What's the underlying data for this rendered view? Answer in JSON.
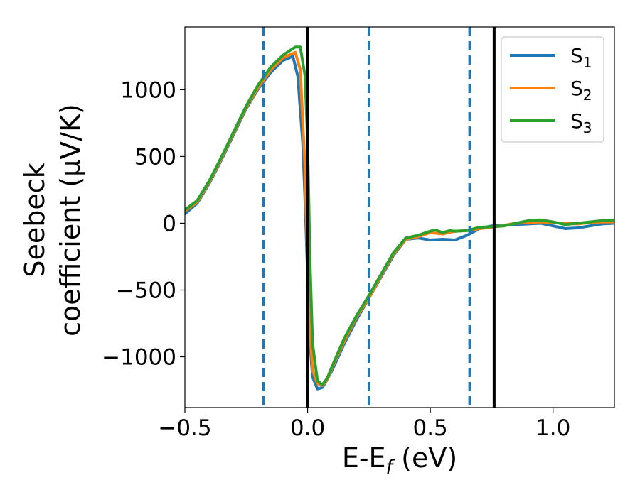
{
  "chart_data": {
    "type": "line",
    "xlabel": {
      "main": "E-E",
      "sub": "f",
      "unit": " (eV)"
    },
    "ylabel": {
      "line1": "Seebeck",
      "line2": "coefficient  (μV/K)"
    },
    "xlim": [
      -0.5,
      1.25
    ],
    "ylim": [
      -1380,
      1470
    ],
    "xticks": [
      -0.5,
      0.0,
      0.5,
      1.0
    ],
    "xtick_labels": [
      "−0.5",
      "0.0",
      "0.5",
      "1.0"
    ],
    "yticks": [
      -1000,
      -500,
      0,
      500,
      1000
    ],
    "ytick_labels": [
      "−1000",
      "−500",
      "0",
      "500",
      "1000"
    ],
    "legend_position": "upper right",
    "vertical_lines": [
      {
        "x": -0.18,
        "style": "dashed",
        "color": "#1f77b4"
      },
      {
        "x": 0.0,
        "style": "solid",
        "color": "#000000"
      },
      {
        "x": 0.25,
        "style": "dashed",
        "color": "#1f77b4"
      },
      {
        "x": 0.66,
        "style": "dashed",
        "color": "#1f77b4"
      },
      {
        "x": 0.76,
        "style": "solid",
        "color": "#000000"
      }
    ],
    "series": [
      {
        "name": "S",
        "sub": "1",
        "color": "#1f77b4",
        "x": [
          -0.5,
          -0.45,
          -0.4,
          -0.35,
          -0.3,
          -0.25,
          -0.2,
          -0.15,
          -0.1,
          -0.06,
          -0.04,
          -0.02,
          -0.01,
          0.0,
          0.01,
          0.02,
          0.04,
          0.06,
          0.08,
          0.1,
          0.15,
          0.2,
          0.25,
          0.3,
          0.35,
          0.4,
          0.45,
          0.5,
          0.55,
          0.6,
          0.65,
          0.7,
          0.75,
          0.8,
          0.85,
          0.9,
          0.95,
          1.0,
          1.05,
          1.1,
          1.15,
          1.2,
          1.25
        ],
        "y": [
          70,
          150,
          300,
          480,
          670,
          860,
          1010,
          1130,
          1220,
          1250,
          1100,
          600,
          150,
          -400,
          -900,
          -1150,
          -1240,
          -1230,
          -1170,
          -1100,
          -900,
          -720,
          -560,
          -400,
          -240,
          -120,
          -110,
          -125,
          -120,
          -125,
          -90,
          -40,
          -20,
          -15,
          -10,
          -5,
          0,
          -20,
          -40,
          -35,
          -20,
          -5,
          0
        ]
      },
      {
        "name": "S",
        "sub": "2",
        "color": "#ff7f0e",
        "x": [
          -0.5,
          -0.45,
          -0.4,
          -0.35,
          -0.3,
          -0.25,
          -0.2,
          -0.15,
          -0.1,
          -0.05,
          -0.03,
          -0.01,
          0.0,
          0.01,
          0.02,
          0.04,
          0.06,
          0.08,
          0.1,
          0.15,
          0.2,
          0.25,
          0.3,
          0.35,
          0.4,
          0.45,
          0.5,
          0.55,
          0.6,
          0.65,
          0.7,
          0.75,
          0.8,
          0.85,
          0.9,
          0.95,
          1.0,
          1.05,
          1.1,
          1.15,
          1.2,
          1.25
        ],
        "y": [
          90,
          160,
          310,
          490,
          680,
          870,
          1020,
          1150,
          1240,
          1280,
          1150,
          400,
          -300,
          -800,
          -1100,
          -1200,
          -1215,
          -1170,
          -1080,
          -880,
          -700,
          -560,
          -390,
          -230,
          -120,
          -100,
          -70,
          -80,
          -60,
          -55,
          -40,
          -30,
          -15,
          0,
          5,
          10,
          5,
          0,
          -5,
          5,
          10,
          10
        ]
      },
      {
        "name": "S",
        "sub": "3",
        "color": "#2ca02c",
        "x": [
          -0.5,
          -0.45,
          -0.4,
          -0.35,
          -0.3,
          -0.25,
          -0.2,
          -0.15,
          -0.1,
          -0.05,
          -0.03,
          -0.01,
          0.0,
          0.01,
          0.02,
          0.04,
          0.06,
          0.08,
          0.1,
          0.15,
          0.2,
          0.25,
          0.3,
          0.35,
          0.4,
          0.45,
          0.5,
          0.52,
          0.55,
          0.58,
          0.6,
          0.65,
          0.7,
          0.75,
          0.8,
          0.85,
          0.9,
          0.95,
          1.0,
          1.05,
          1.1,
          1.15,
          1.2,
          1.25
        ],
        "y": [
          100,
          170,
          320,
          500,
          690,
          880,
          1040,
          1170,
          1260,
          1320,
          1320,
          1100,
          600,
          -300,
          -900,
          -1180,
          -1210,
          -1160,
          -1070,
          -860,
          -690,
          -540,
          -380,
          -220,
          -110,
          -90,
          -60,
          -50,
          -70,
          -55,
          -60,
          -55,
          -30,
          -25,
          -20,
          0,
          20,
          25,
          10,
          -10,
          0,
          10,
          20,
          25
        ]
      }
    ]
  }
}
